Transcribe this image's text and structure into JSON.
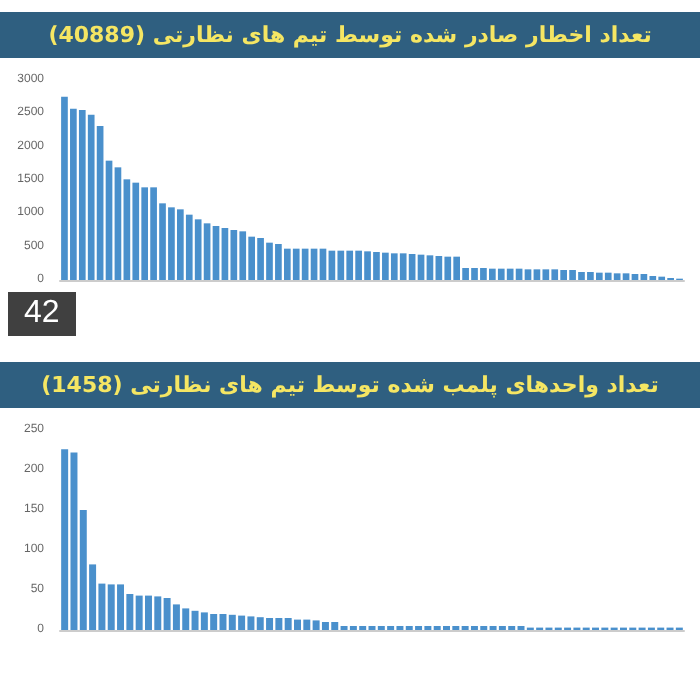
{
  "chart_data": [
    {
      "type": "bar",
      "title": "تعداد اخطار صادر شده توسط تیم های نظارتی (40889)",
      "annotations": [
        "42"
      ],
      "color": "#4a90cc",
      "ylim": [
        0,
        3000
      ],
      "yticks": [
        0,
        500,
        1000,
        1500,
        2000,
        2500,
        3000
      ],
      "grid": false,
      "categories": [
        null,
        null,
        null,
        null,
        null,
        null,
        null,
        null,
        null,
        null,
        null,
        null,
        null,
        null,
        null,
        null,
        null,
        null,
        null,
        null,
        null,
        null,
        null,
        null,
        null,
        null,
        null,
        null,
        null,
        null,
        null,
        null,
        null,
        null,
        null,
        null,
        null,
        null,
        null,
        null,
        null,
        null,
        null,
        null,
        null,
        null,
        null,
        null,
        null,
        null,
        null,
        null,
        null,
        null,
        null,
        null,
        null,
        null,
        null,
        null,
        null,
        null,
        null,
        null,
        null,
        null,
        null,
        null,
        null,
        null
      ],
      "values": [
        2750,
        2570,
        2550,
        2480,
        2310,
        1790,
        1690,
        1510,
        1460,
        1390,
        1390,
        1150,
        1090,
        1060,
        980,
        910,
        850,
        810,
        780,
        750,
        730,
        650,
        630,
        560,
        540,
        470,
        470,
        470,
        470,
        470,
        440,
        440,
        440,
        440,
        430,
        420,
        410,
        400,
        400,
        390,
        380,
        370,
        360,
        350,
        350,
        180,
        180,
        180,
        170,
        170,
        170,
        170,
        160,
        160,
        160,
        160,
        150,
        150,
        120,
        120,
        110,
        110,
        100,
        100,
        90,
        90,
        60,
        50,
        30,
        20
      ]
    },
    {
      "type": "bar",
      "title": "تعداد واحدهای پلمب شده توسط تیم های نظارتی (1458)",
      "color": "#4a90cc",
      "ylim": [
        0,
        250
      ],
      "yticks": [
        0,
        50,
        100,
        150,
        200,
        250
      ],
      "grid": false,
      "categories": [
        null,
        null,
        null,
        null,
        null,
        null,
        null,
        null,
        null,
        null,
        null,
        null,
        null,
        null,
        null,
        null,
        null,
        null,
        null,
        null,
        null,
        null,
        null,
        null,
        null,
        null,
        null,
        null,
        null,
        null,
        null,
        null,
        null,
        null,
        null,
        null,
        null,
        null,
        null,
        null,
        null,
        null,
        null,
        null,
        null,
        null,
        null,
        null,
        null,
        null,
        null,
        null,
        null,
        null,
        null,
        null,
        null,
        null,
        null,
        null,
        null,
        null,
        null,
        null,
        null,
        null,
        null
      ],
      "values": [
        226,
        222,
        150,
        82,
        58,
        57,
        57,
        45,
        43,
        43,
        42,
        40,
        32,
        27,
        24,
        22,
        20,
        20,
        19,
        18,
        17,
        16,
        15,
        15,
        15,
        13,
        13,
        12,
        10,
        10,
        5,
        5,
        5,
        5,
        5,
        5,
        5,
        5,
        5,
        5,
        5,
        5,
        5,
        5,
        5,
        5,
        5,
        5,
        5,
        5,
        3,
        3,
        3,
        3,
        3,
        3,
        3,
        3,
        3,
        3,
        3,
        3,
        3,
        3,
        3,
        3,
        3
      ]
    }
  ]
}
